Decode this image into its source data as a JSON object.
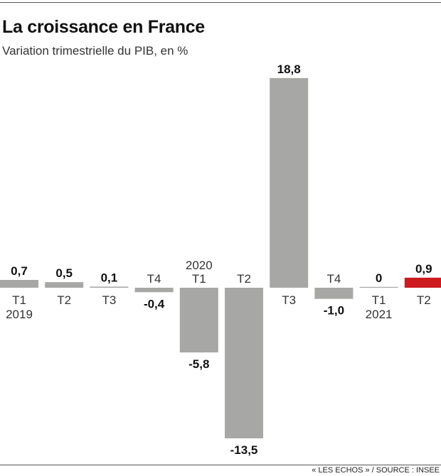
{
  "chart_data": {
    "type": "bar",
    "title": "La croissance en France",
    "subtitle": "Variation trimestrielle du PIB, en %",
    "categories": [
      {
        "quarter": "T1",
        "year": "2019"
      },
      {
        "quarter": "T2",
        "year": ""
      },
      {
        "quarter": "T3",
        "year": ""
      },
      {
        "quarter": "T4",
        "year": ""
      },
      {
        "quarter": "T1",
        "year": "2020"
      },
      {
        "quarter": "T2",
        "year": ""
      },
      {
        "quarter": "T3",
        "year": ""
      },
      {
        "quarter": "T4",
        "year": ""
      },
      {
        "quarter": "T1",
        "year": "2021"
      },
      {
        "quarter": "T2",
        "year": ""
      }
    ],
    "values": [
      0.7,
      0.5,
      0.1,
      -0.4,
      -5.8,
      -13.5,
      18.8,
      -1.0,
      0,
      0.9
    ],
    "value_labels": [
      "0,7",
      "0,5",
      "0,1",
      "-0,4",
      "-5,8",
      "-13,5",
      "18,8",
      "-1,0",
      "0",
      "0,9"
    ],
    "colors": {
      "default": "#a7a7a5",
      "highlight": "#cc1a1f"
    },
    "highlight_index": 9,
    "ylim": [
      -13.5,
      18.8
    ],
    "grid": false,
    "source": "« LES ECHOS » / SOURCE : INSEE"
  }
}
